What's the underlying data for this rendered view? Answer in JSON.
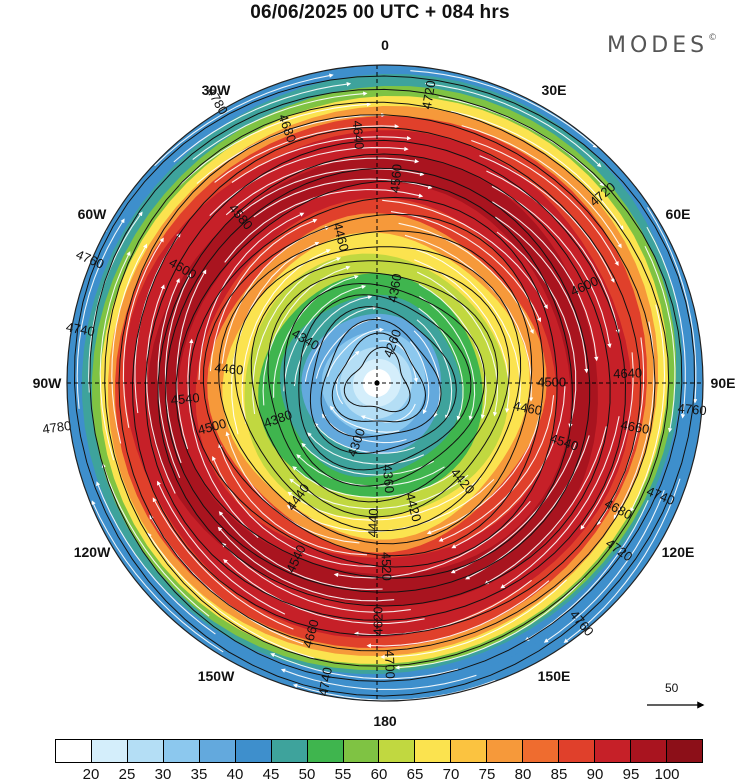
{
  "title": "06/06/2025  00 UTC  + 084 hrs",
  "brand": {
    "name": "MODES",
    "mark": "©"
  },
  "longitude_labels": [
    {
      "id": "lon-0",
      "text": "0",
      "angle": 0
    },
    {
      "id": "lon-30e",
      "text": "30E",
      "angle": 30
    },
    {
      "id": "lon-60e",
      "text": "60E",
      "angle": 60
    },
    {
      "id": "lon-90e",
      "text": "90E",
      "angle": 90
    },
    {
      "id": "lon-120e",
      "text": "120E",
      "angle": 120
    },
    {
      "id": "lon-150e",
      "text": "150E",
      "angle": 150
    },
    {
      "id": "lon-180",
      "text": "180",
      "angle": 180
    },
    {
      "id": "lon-150w",
      "text": "150W",
      "angle": 210
    },
    {
      "id": "lon-120w",
      "text": "120W",
      "angle": 240
    },
    {
      "id": "lon-90w",
      "text": "90W",
      "angle": 270
    },
    {
      "id": "lon-60w",
      "text": "60W",
      "angle": 300
    },
    {
      "id": "lon-30w",
      "text": "30W",
      "angle": 330
    }
  ],
  "contours": [
    {
      "value": "4260",
      "angle": 20
    },
    {
      "value": "4300",
      "angle": 200
    },
    {
      "value": "4340",
      "angle": 300
    },
    {
      "value": "4360",
      "angle": 10
    },
    {
      "value": "4360",
      "angle": 175
    },
    {
      "value": "4380",
      "angle": 250
    },
    {
      "value": "4420",
      "angle": 140
    },
    {
      "value": "4420",
      "angle": 165
    },
    {
      "value": "4440",
      "angle": 215
    },
    {
      "value": "4440",
      "angle": 182
    },
    {
      "value": "4460",
      "angle": 275
    },
    {
      "value": "4460",
      "angle": 345
    },
    {
      "value": "4460",
      "angle": 100
    },
    {
      "value": "4500",
      "angle": 255
    },
    {
      "value": "4500",
      "angle": 90
    },
    {
      "value": "4520",
      "angle": 178
    },
    {
      "value": "4540",
      "angle": 265
    },
    {
      "value": "4540",
      "angle": 205
    },
    {
      "value": "4540",
      "angle": 108
    },
    {
      "value": "4560",
      "angle": 5
    },
    {
      "value": "4580",
      "angle": 320
    },
    {
      "value": "4600",
      "angle": 65
    },
    {
      "value": "4600",
      "angle": 300
    },
    {
      "value": "4620",
      "angle": 180
    },
    {
      "value": "4640",
      "angle": 355
    },
    {
      "value": "4640",
      "angle": 88
    },
    {
      "value": "4660",
      "angle": 100
    },
    {
      "value": "4660",
      "angle": 195
    },
    {
      "value": "4680",
      "angle": 340
    },
    {
      "value": "4680",
      "angle": 118
    },
    {
      "value": "4700",
      "angle": 178
    },
    {
      "value": "4720",
      "angle": 10
    },
    {
      "value": "4720",
      "angle": 50
    },
    {
      "value": "4720",
      "angle": 125
    },
    {
      "value": "4740",
      "angle": 190
    },
    {
      "value": "4740",
      "angle": 280
    },
    {
      "value": "4740",
      "angle": 112
    },
    {
      "value": "4760",
      "angle": 140
    },
    {
      "value": "4760",
      "angle": 95
    },
    {
      "value": "4760",
      "angle": 293
    },
    {
      "value": "4780",
      "angle": 330
    },
    {
      "value": "4780",
      "angle": 262
    }
  ],
  "colorbar": {
    "colors": [
      "#ffffff",
      "#d4eefb",
      "#b4def5",
      "#8cc8ee",
      "#63a9dd",
      "#3e8fcc",
      "#3ea39c",
      "#3fb54e",
      "#7fc343",
      "#c1d840",
      "#fbe34f",
      "#fbc340",
      "#f6993a",
      "#ef6c2f",
      "#e0402b",
      "#c62028",
      "#a9141f",
      "#8c0f18"
    ],
    "labels": [
      "20",
      "25",
      "30",
      "35",
      "40",
      "45",
      "50",
      "55",
      "60",
      "65",
      "70",
      "75",
      "80",
      "85",
      "90",
      "95",
      "100"
    ]
  },
  "reference_vector": {
    "label": "50"
  }
}
